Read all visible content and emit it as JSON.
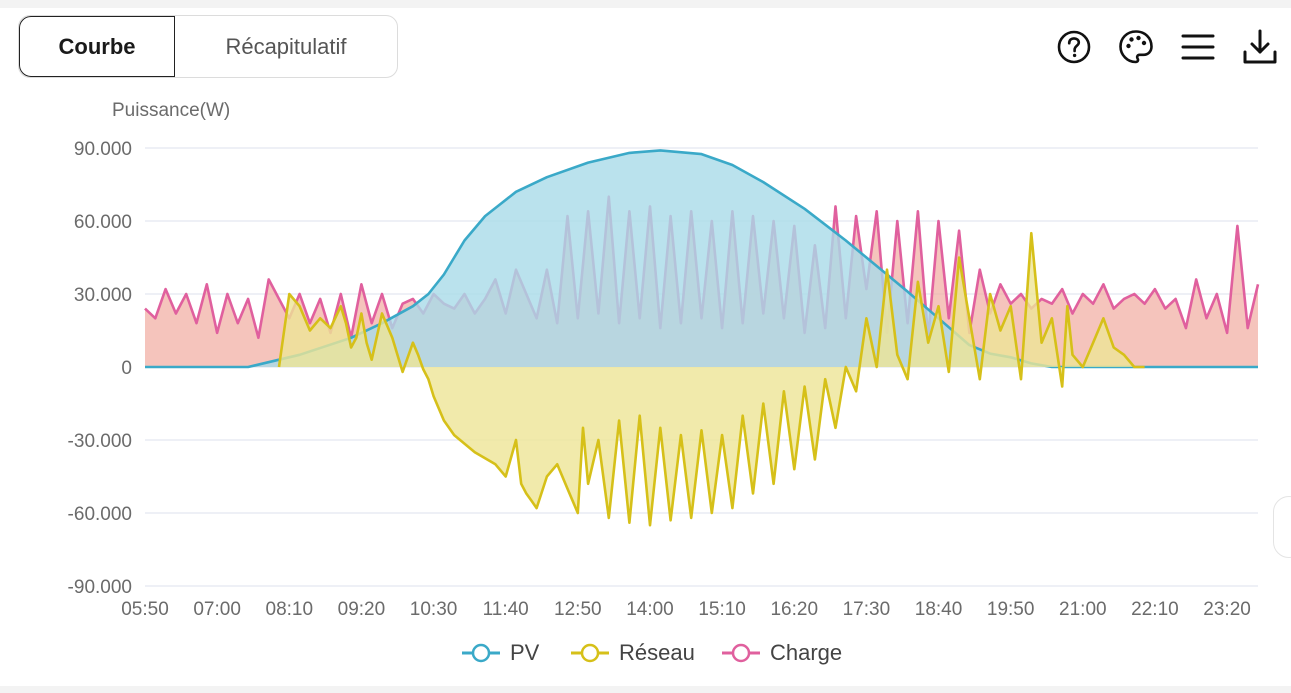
{
  "tabs": [
    {
      "label": "Courbe",
      "active": true
    },
    {
      "label": "Récapitulatif",
      "active": false
    }
  ],
  "toolbar": {
    "icons": [
      "help-icon",
      "palette-icon",
      "menu-icon",
      "download-icon"
    ]
  },
  "colors": {
    "pv": "#3aa9c8",
    "pv_fill": "#a9dbe8",
    "reseau": "#d6c019",
    "reseau_fill": "#ede596",
    "charge": "#e0609e",
    "charge_fill": "#f2b0a6",
    "grid": "#e3e8f0",
    "axis_text": "#6b6b6b"
  },
  "chart_data": {
    "type": "area",
    "ylabel": "Puissance(W)",
    "ylim": [
      -90000,
      90000
    ],
    "yticks": [
      90000,
      60000,
      30000,
      0,
      -30000,
      -60000,
      -90000
    ],
    "ytick_labels": [
      "90.000",
      "60.000",
      "30.000",
      "0",
      "-30.000",
      "-60.000",
      "-90.000"
    ],
    "xlim": [
      0,
      1080
    ],
    "xticks": [
      0,
      70,
      140,
      210,
      280,
      350,
      420,
      490,
      560,
      630,
      700,
      770,
      840,
      910,
      980,
      1050
    ],
    "xtick_labels": [
      "05:50",
      "07:00",
      "08:10",
      "09:20",
      "10:30",
      "11:40",
      "12:50",
      "14:00",
      "15:10",
      "16:20",
      "17:30",
      "18:40",
      "19:50",
      "21:00",
      "22:10",
      "23:20"
    ],
    "grid": true,
    "legend_position": "bottom-center",
    "series": [
      {
        "name": "PV",
        "x": [
          0,
          50,
          100,
          150,
          200,
          230,
          260,
          275,
          290,
          300,
          310,
          330,
          345,
          360,
          390,
          430,
          470,
          500,
          540,
          570,
          600,
          640,
          680,
          720,
          740,
          770,
          800,
          820,
          840,
          860,
          880,
          920,
          980,
          1080
        ],
        "values": [
          0,
          0,
          0,
          5000,
          12000,
          18000,
          25000,
          30000,
          38000,
          45000,
          52000,
          62000,
          67000,
          72000,
          78000,
          84000,
          88000,
          89000,
          87500,
          83000,
          76000,
          65000,
          52000,
          38000,
          31000,
          20000,
          9000,
          5500,
          4000,
          1500,
          0,
          0,
          0,
          0
        ]
      },
      {
        "name": "Réseau",
        "x": [
          130,
          140,
          150,
          160,
          170,
          180,
          190,
          195,
          200,
          205,
          210,
          215,
          220,
          230,
          240,
          250,
          260,
          265,
          270,
          275,
          280,
          290,
          300,
          320,
          340,
          350,
          360,
          365,
          370,
          375,
          380,
          390,
          400,
          410,
          420,
          425,
          430,
          440,
          450,
          460,
          470,
          480,
          490,
          500,
          510,
          520,
          530,
          540,
          550,
          560,
          570,
          580,
          590,
          600,
          610,
          620,
          630,
          640,
          650,
          660,
          670,
          680,
          690,
          700,
          710,
          720,
          730,
          740,
          750,
          760,
          770,
          780,
          790,
          800,
          810,
          820,
          830,
          840,
          850,
          860,
          870,
          880,
          890,
          895,
          900,
          910,
          920,
          930,
          940,
          950,
          960,
          965,
          970
        ],
        "values": [
          0,
          30000,
          25000,
          15000,
          20000,
          16000,
          25000,
          18000,
          8000,
          12000,
          22000,
          10000,
          3000,
          22000,
          12000,
          -2000,
          10000,
          5000,
          -1000,
          -5000,
          -12000,
          -22000,
          -28000,
          -35000,
          -40000,
          -45000,
          -30000,
          -48000,
          -52000,
          -55000,
          -58000,
          -45000,
          -40000,
          -50000,
          -60000,
          -25000,
          -48000,
          -30000,
          -62000,
          -22000,
          -64000,
          -20000,
          -65000,
          -25000,
          -63000,
          -28000,
          -62000,
          -26000,
          -60000,
          -28000,
          -58000,
          -20000,
          -52000,
          -15000,
          -48000,
          -10000,
          -42000,
          -8000,
          -38000,
          -5000,
          -25000,
          0,
          -10000,
          20000,
          0,
          40000,
          5000,
          -5000,
          35000,
          10000,
          25000,
          -2000,
          45000,
          20000,
          -5000,
          30000,
          15000,
          25000,
          -5000,
          55000,
          10000,
          20000,
          -8000,
          25000,
          5000,
          0,
          10000,
          20000,
          8000,
          5000,
          0,
          0,
          0
        ]
      },
      {
        "name": "Charge",
        "x": [
          0,
          10,
          20,
          30,
          40,
          50,
          60,
          70,
          80,
          90,
          100,
          110,
          120,
          130,
          140,
          150,
          160,
          170,
          180,
          190,
          200,
          210,
          220,
          230,
          240,
          250,
          260,
          270,
          280,
          290,
          300,
          310,
          320,
          330,
          340,
          350,
          360,
          370,
          380,
          390,
          400,
          410,
          420,
          430,
          440,
          450,
          460,
          470,
          480,
          490,
          500,
          510,
          520,
          530,
          540,
          550,
          560,
          570,
          580,
          590,
          600,
          610,
          620,
          630,
          640,
          650,
          660,
          670,
          680,
          690,
          700,
          710,
          720,
          730,
          740,
          750,
          760,
          770,
          780,
          790,
          800,
          810,
          820,
          830,
          840,
          850,
          860,
          870,
          880,
          890,
          900,
          910,
          920,
          930,
          940,
          950,
          960,
          970,
          980,
          990,
          1000,
          1010,
          1020,
          1030,
          1040,
          1050,
          1060,
          1070,
          1080
        ],
        "values": [
          24000,
          20000,
          32000,
          22000,
          30000,
          18000,
          34000,
          14000,
          30000,
          18000,
          28000,
          12000,
          36000,
          28000,
          20000,
          30000,
          18000,
          28000,
          14000,
          30000,
          12000,
          34000,
          18000,
          30000,
          16000,
          26000,
          28000,
          22000,
          30000,
          26000,
          24000,
          30000,
          22000,
          28000,
          36000,
          22000,
          40000,
          30000,
          20000,
          40000,
          18000,
          62000,
          20000,
          64000,
          22000,
          70000,
          18000,
          64000,
          20000,
          66000,
          16000,
          62000,
          18000,
          64000,
          20000,
          60000,
          16000,
          64000,
          18000,
          62000,
          22000,
          60000,
          20000,
          58000,
          14000,
          50000,
          16000,
          66000,
          20000,
          62000,
          32000,
          64000,
          14000,
          60000,
          18000,
          64000,
          12000,
          60000,
          20000,
          56000,
          14000,
          40000,
          22000,
          34000,
          26000,
          30000,
          24000,
          28000,
          26000,
          32000,
          22000,
          30000,
          26000,
          34000,
          24000,
          28000,
          30000,
          26000,
          32000,
          24000,
          28000,
          16000,
          36000,
          20000,
          30000,
          14000,
          58000,
          16000,
          34000
        ]
      }
    ]
  }
}
